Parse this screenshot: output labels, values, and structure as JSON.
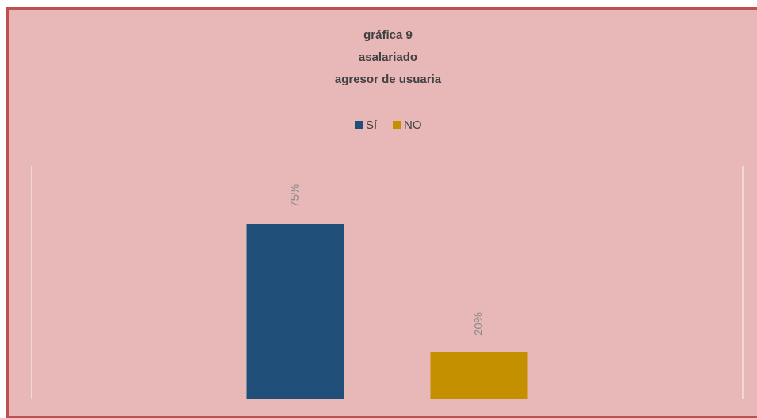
{
  "chart_data": {
    "type": "bar",
    "title": [
      "gráfica 9",
      "asalariado",
      "agresor de usuaria"
    ],
    "categories": [
      null
    ],
    "series": [
      {
        "name": "Sí",
        "color": "#1f4e79",
        "values": [
          75
        ],
        "value_labels": [
          "75%"
        ]
      },
      {
        "name": "NO",
        "color": "#c49000",
        "values": [
          20
        ],
        "value_labels": [
          "20%"
        ]
      }
    ],
    "ylim": [
      0,
      100
    ],
    "legend": "top"
  }
}
